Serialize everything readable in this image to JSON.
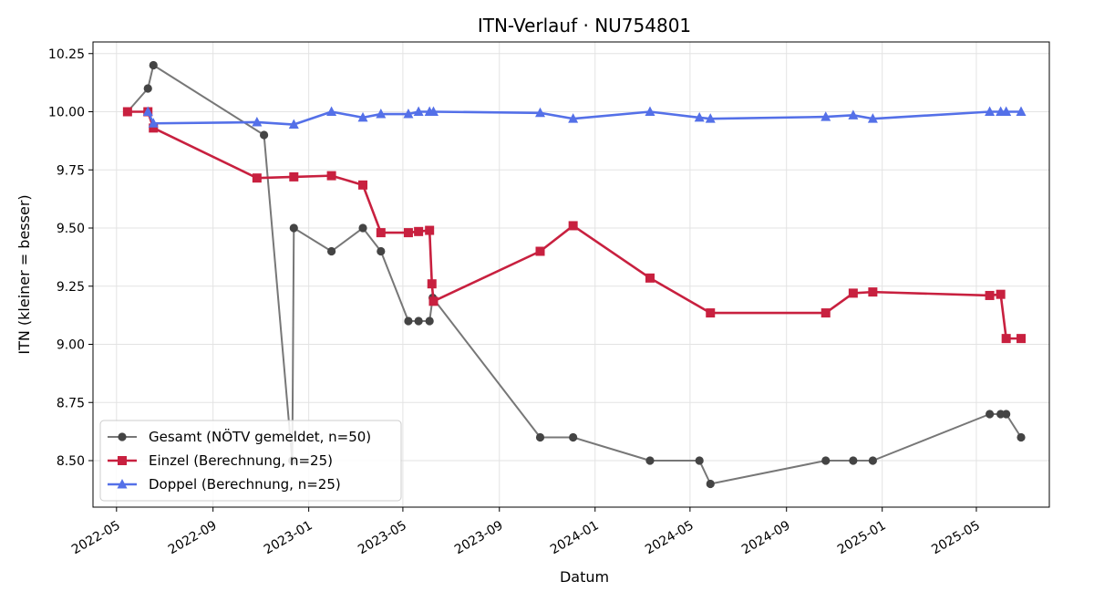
{
  "chart_data": {
    "type": "line",
    "title": "ITN-Verlauf · NU754801",
    "xlabel": "Datum",
    "ylabel": "ITN  (kleiner = besser)",
    "ylim": [
      8.3,
      10.3
    ],
    "yticks": [
      8.5,
      8.75,
      9.0,
      9.25,
      9.5,
      9.75,
      10.0,
      10.25
    ],
    "ytick_labels": [
      "8.50",
      "8.75",
      "9.00",
      "9.25",
      "9.50",
      "9.75",
      "10.00",
      "10.25"
    ],
    "xlim": [
      "2022-04-01",
      "2025-08-02"
    ],
    "xticks": [
      "2022-05-01",
      "2022-09-01",
      "2023-01-01",
      "2023-05-01",
      "2023-09-01",
      "2024-01-01",
      "2024-05-01",
      "2024-09-01",
      "2025-01-01",
      "2025-05-01"
    ],
    "xtick_labels": [
      "2022-05",
      "2022-09",
      "2023-01",
      "2023-05",
      "2023-09",
      "2024-01",
      "2024-05",
      "2024-09",
      "2025-01",
      "2025-05"
    ],
    "grid": true,
    "legend_position": "lower-left",
    "series": [
      {
        "name": "Gesamt (NÖTV gemeldet, n=50)",
        "color": "#777777",
        "marker_color": "#444444",
        "marker": "circle",
        "points": [
          [
            "2022-05-15",
            10.0
          ],
          [
            "2022-06-10",
            10.1
          ],
          [
            "2022-06-17",
            10.2
          ],
          [
            "2022-11-05",
            9.9
          ],
          [
            "2022-12-11",
            8.5
          ],
          [
            "2022-12-13",
            9.5
          ],
          [
            "2023-01-30",
            9.4
          ],
          [
            "2023-03-11",
            9.5
          ],
          [
            "2023-04-03",
            9.4
          ],
          [
            "2023-05-08",
            9.1
          ],
          [
            "2023-05-21",
            9.1
          ],
          [
            "2023-06-04",
            9.1
          ],
          [
            "2023-06-08",
            9.2
          ],
          [
            "2023-10-23",
            8.6
          ],
          [
            "2023-12-04",
            8.6
          ],
          [
            "2024-03-11",
            8.5
          ],
          [
            "2024-05-13",
            8.5
          ],
          [
            "2024-05-27",
            8.4
          ],
          [
            "2024-10-21",
            8.5
          ],
          [
            "2024-11-25",
            8.5
          ],
          [
            "2024-12-20",
            8.5
          ],
          [
            "2025-05-18",
            8.7
          ],
          [
            "2025-06-01",
            8.7
          ],
          [
            "2025-06-08",
            8.7
          ],
          [
            "2025-06-27",
            8.6
          ]
        ]
      },
      {
        "name": "Einzel (Berechnung, n=25)",
        "color": "#c8203f",
        "marker_color": "#c8203f",
        "marker": "square",
        "points": [
          [
            "2022-05-15",
            10.0
          ],
          [
            "2022-06-10",
            10.0
          ],
          [
            "2022-06-17",
            9.93
          ],
          [
            "2022-10-27",
            9.715
          ],
          [
            "2022-12-13",
            9.72
          ],
          [
            "2023-01-30",
            9.725
          ],
          [
            "2023-03-11",
            9.685
          ],
          [
            "2023-04-03",
            9.48
          ],
          [
            "2023-05-08",
            9.48
          ],
          [
            "2023-05-21",
            9.485
          ],
          [
            "2023-06-04",
            9.49
          ],
          [
            "2023-06-07",
            9.26
          ],
          [
            "2023-06-09",
            9.185
          ],
          [
            "2023-10-23",
            9.4
          ],
          [
            "2023-12-04",
            9.51
          ],
          [
            "2024-03-11",
            9.285
          ],
          [
            "2024-05-27",
            9.135
          ],
          [
            "2024-10-21",
            9.135
          ],
          [
            "2024-11-25",
            9.22
          ],
          [
            "2024-12-20",
            9.225
          ],
          [
            "2025-05-18",
            9.21
          ],
          [
            "2025-06-01",
            9.215
          ],
          [
            "2025-06-08",
            9.025
          ],
          [
            "2025-06-27",
            9.025
          ]
        ]
      },
      {
        "name": "Doppel (Berechnung, n=25)",
        "color": "#5470e8",
        "marker_color": "#5470e8",
        "marker": "triangle",
        "points": [
          [
            "2022-06-10",
            10.0
          ],
          [
            "2022-06-17",
            9.95
          ],
          [
            "2022-10-27",
            9.955
          ],
          [
            "2022-12-13",
            9.945
          ],
          [
            "2023-01-30",
            10.0
          ],
          [
            "2023-03-11",
            9.975
          ],
          [
            "2023-04-03",
            9.99
          ],
          [
            "2023-05-08",
            9.99
          ],
          [
            "2023-05-21",
            10.0
          ],
          [
            "2023-06-04",
            10.0
          ],
          [
            "2023-06-09",
            10.0
          ],
          [
            "2023-10-23",
            9.995
          ],
          [
            "2023-12-04",
            9.97
          ],
          [
            "2024-03-11",
            10.0
          ],
          [
            "2024-05-13",
            9.975
          ],
          [
            "2024-05-27",
            9.97
          ],
          [
            "2024-10-21",
            9.978
          ],
          [
            "2024-11-25",
            9.985
          ],
          [
            "2024-12-20",
            9.97
          ],
          [
            "2025-05-18",
            10.0
          ],
          [
            "2025-06-01",
            10.0
          ],
          [
            "2025-06-08",
            10.0
          ],
          [
            "2025-06-27",
            10.0
          ]
        ]
      }
    ]
  }
}
